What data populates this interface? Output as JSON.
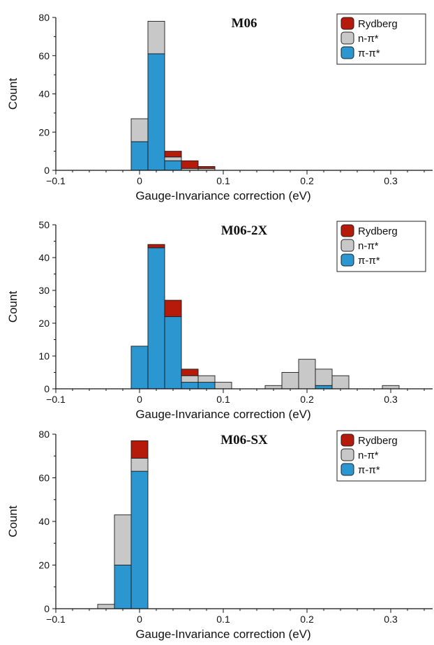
{
  "colors": {
    "Rydberg": "#b51a0b",
    "n-π*": "#c8c8c8",
    "π-π*": "#2b96cf",
    "axis": "#111111"
  },
  "chart_data": [
    {
      "type": "bar",
      "stacked": true,
      "title": "M06",
      "xlabel": "Gauge-Invariance correction (eV)",
      "ylabel": "Count",
      "xlim": [
        -0.1,
        0.35
      ],
      "ylim": [
        0,
        80
      ],
      "xticks": [
        -0.1,
        0,
        0.1,
        0.2,
        0.3
      ],
      "xtick_labels": [
        "−0.1",
        "0",
        "0.1",
        "0.2",
        "0.3"
      ],
      "yticks": [
        0,
        20,
        40,
        60,
        80
      ],
      "bin_width": 0.02,
      "legend": [
        "Rydberg",
        "n-π*",
        "π-π*"
      ],
      "legend_position": "top-right",
      "bins": [
        {
          "x": 0.0,
          "π-π*": 15,
          "n-π*": 12,
          "Rydberg": 0
        },
        {
          "x": 0.02,
          "π-π*": 61,
          "n-π*": 17,
          "Rydberg": 0
        },
        {
          "x": 0.04,
          "π-π*": 5,
          "n-π*": 2,
          "Rydberg": 3
        },
        {
          "x": 0.06,
          "π-π*": 0,
          "n-π*": 1,
          "Rydberg": 4
        },
        {
          "x": 0.08,
          "π-π*": 0,
          "n-π*": 1,
          "Rydberg": 1
        }
      ]
    },
    {
      "type": "bar",
      "stacked": true,
      "title": "M06-2X",
      "xlabel": "Gauge-Invariance correction (eV)",
      "ylabel": "Count",
      "xlim": [
        -0.1,
        0.35
      ],
      "ylim": [
        0,
        50
      ],
      "xticks": [
        -0.1,
        0,
        0.1,
        0.2,
        0.3
      ],
      "xtick_labels": [
        "−0.1",
        "0",
        "0.1",
        "0.2",
        "0.3"
      ],
      "yticks": [
        0,
        10,
        20,
        30,
        40,
        50
      ],
      "bin_width": 0.02,
      "legend": [
        "Rydberg",
        "n-π*",
        "π-π*"
      ],
      "legend_position": "top-right",
      "bins": [
        {
          "x": 0.0,
          "π-π*": 13,
          "n-π*": 0,
          "Rydberg": 0
        },
        {
          "x": 0.02,
          "π-π*": 43,
          "n-π*": 0,
          "Rydberg": 1
        },
        {
          "x": 0.04,
          "π-π*": 22,
          "n-π*": 0,
          "Rydberg": 5
        },
        {
          "x": 0.06,
          "π-π*": 2,
          "n-π*": 2,
          "Rydberg": 2
        },
        {
          "x": 0.08,
          "π-π*": 2,
          "n-π*": 2,
          "Rydberg": 0
        },
        {
          "x": 0.1,
          "π-π*": 0,
          "n-π*": 2,
          "Rydberg": 0
        },
        {
          "x": 0.16,
          "π-π*": 0,
          "n-π*": 1,
          "Rydberg": 0
        },
        {
          "x": 0.18,
          "π-π*": 0,
          "n-π*": 5,
          "Rydberg": 0
        },
        {
          "x": 0.2,
          "π-π*": 0,
          "n-π*": 9,
          "Rydberg": 0
        },
        {
          "x": 0.22,
          "π-π*": 1,
          "n-π*": 5,
          "Rydberg": 0
        },
        {
          "x": 0.24,
          "π-π*": 0,
          "n-π*": 4,
          "Rydberg": 0
        },
        {
          "x": 0.3,
          "π-π*": 0,
          "n-π*": 1,
          "Rydberg": 0
        }
      ]
    },
    {
      "type": "bar",
      "stacked": true,
      "title": "M06-SX",
      "xlabel": "Gauge-Invariance correction (eV)",
      "ylabel": "Count",
      "xlim": [
        -0.1,
        0.35
      ],
      "ylim": [
        0,
        80
      ],
      "xticks": [
        -0.1,
        0,
        0.1,
        0.2,
        0.3
      ],
      "xtick_labels": [
        "−0.1",
        "0",
        "0.1",
        "0.2",
        "0.3"
      ],
      "yticks": [
        0,
        20,
        40,
        60,
        80
      ],
      "bin_width": 0.02,
      "legend": [
        "Rydberg",
        "n-π*",
        "π-π*"
      ],
      "legend_position": "top-right",
      "bins": [
        {
          "x": -0.04,
          "π-π*": 0,
          "n-π*": 2,
          "Rydberg": 0
        },
        {
          "x": -0.02,
          "π-π*": 20,
          "n-π*": 23,
          "Rydberg": 0
        },
        {
          "x": 0.0,
          "π-π*": 63,
          "n-π*": 6,
          "Rydberg": 8
        }
      ]
    }
  ]
}
